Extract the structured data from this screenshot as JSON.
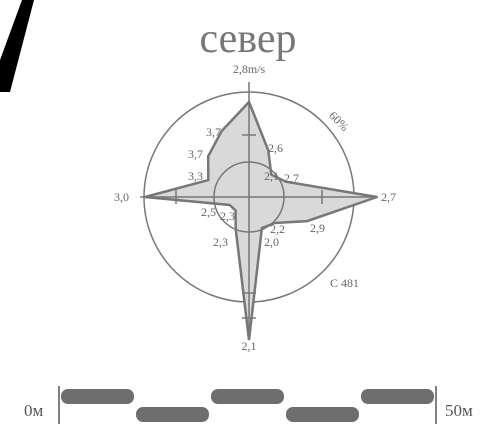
{
  "title": "север",
  "wind_rose": {
    "top_label": "2,8m/s",
    "percent_label": "60%",
    "station_label": "С 481",
    "directions": [
      {
        "dir": "N",
        "value_label": "2,8m/s",
        "extent": 1.0,
        "inner_label": ""
      },
      {
        "dir": "NNE",
        "value_label": "2,6",
        "extent": 0.48,
        "inner_label": ""
      },
      {
        "dir": "NE",
        "value_label": "2,7",
        "extent": 0.3,
        "inner_label": "2,1"
      },
      {
        "dir": "ENE",
        "value_label": "",
        "extent": 0.35,
        "inner_label": ""
      },
      {
        "dir": "E",
        "value_label": "2,7",
        "extent": 1.25,
        "inner_label": ""
      },
      {
        "dir": "ESE",
        "value_label": "2,9",
        "extent": 0.6,
        "inner_label": ""
      },
      {
        "dir": "SE",
        "value_label": "2,2",
        "extent": 0.35,
        "inner_label": ""
      },
      {
        "dir": "SSE",
        "value_label": "2,0",
        "extent": 0.32,
        "inner_label": ""
      },
      {
        "dir": "S",
        "value_label": "2,1",
        "extent": 1.4,
        "inner_label": ""
      },
      {
        "dir": "SSW",
        "value_label": "2,3",
        "extent": 0.33,
        "inner_label": ""
      },
      {
        "dir": "SW",
        "value_label": "2,3",
        "extent": 0.18,
        "inner_label": ""
      },
      {
        "dir": "WSW",
        "value_label": "2,5",
        "extent": 0.2,
        "inner_label": ""
      },
      {
        "dir": "W",
        "value_label": "3,0",
        "extent": 1.0,
        "inner_label": ""
      },
      {
        "dir": "WNW",
        "value_label": "3,3",
        "extent": 0.42,
        "inner_label": ""
      },
      {
        "dir": "NW",
        "value_label": "3,7",
        "extent": 0.55,
        "inner_label": ""
      },
      {
        "dir": "NNW",
        "value_label": "3,7",
        "extent": 0.68,
        "inner_label": ""
      }
    ]
  },
  "scale_bar": {
    "left_label": "0м",
    "right_label": "50м",
    "segments": 5
  },
  "colors": {
    "rose_fill": "#d9d9d9",
    "stroke": "#777777",
    "scale_segment": "#6e6e6e",
    "slash": "#000000"
  }
}
